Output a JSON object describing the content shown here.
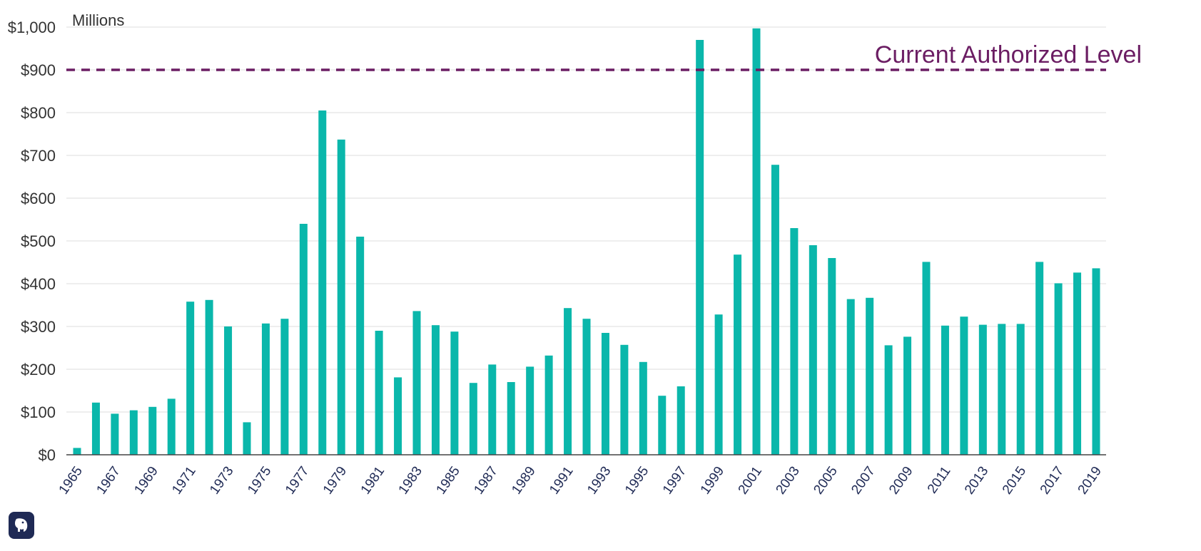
{
  "chart_data": {
    "type": "bar",
    "unit_label": "Millions",
    "categories": [
      "1965",
      "1966",
      "1967",
      "1968",
      "1969",
      "1970",
      "1971",
      "1972",
      "1973",
      "1974",
      "1975",
      "1976",
      "1977",
      "1978",
      "1979",
      "1980",
      "1981",
      "1982",
      "1983",
      "1984",
      "1985",
      "1986",
      "1987",
      "1988",
      "1989",
      "1990",
      "1991",
      "1992",
      "1993",
      "1994",
      "1995",
      "1996",
      "1997",
      "1998",
      "1999",
      "2000",
      "2001",
      "2002",
      "2003",
      "2004",
      "2005",
      "2006",
      "2007",
      "2008",
      "2009",
      "2010",
      "2011",
      "2012",
      "2013",
      "2014",
      "2015",
      "2016",
      "2017",
      "2018",
      "2019"
    ],
    "x_tick_labels": [
      "1965",
      "1967",
      "1969",
      "1971",
      "1973",
      "1975",
      "1977",
      "1979",
      "1981",
      "1983",
      "1985",
      "1987",
      "1989",
      "1991",
      "1993",
      "1995",
      "1997",
      "1999",
      "2001",
      "2003",
      "2005",
      "2007",
      "2009",
      "2011",
      "2013",
      "2015",
      "2017",
      "2019"
    ],
    "values": [
      16,
      122,
      96,
      104,
      112,
      131,
      358,
      362,
      300,
      76,
      307,
      318,
      540,
      805,
      737,
      510,
      290,
      181,
      336,
      303,
      288,
      168,
      211,
      170,
      206,
      232,
      343,
      318,
      285,
      257,
      217,
      138,
      160,
      970,
      328,
      468,
      997,
      678,
      530,
      490,
      460,
      364,
      367,
      256,
      276,
      451,
      302,
      323,
      304,
      306,
      306,
      451,
      401,
      426,
      436
    ],
    "ylim": [
      0,
      1000
    ],
    "y_ticks": [
      0,
      100,
      200,
      300,
      400,
      500,
      600,
      700,
      800,
      900,
      1000
    ],
    "y_tick_labels": [
      "$0",
      "$100",
      "$200",
      "$300",
      "$400",
      "$500",
      "$600",
      "$700",
      "$800",
      "$900",
      "$1,000"
    ],
    "grid": "horizontal",
    "reference_line": {
      "label": "Current Authorized Level",
      "value": 900
    },
    "title": "",
    "xlabel": "",
    "ylabel": ""
  },
  "colors": {
    "bar": "#0ab7ab",
    "reference": "#6b1d63",
    "grid": "#dddddd",
    "axis": "#444444",
    "x_tick_text": "#1f2a55",
    "y_tick_text": "#333333",
    "logo_bg": "#1f2a55"
  },
  "logo": {
    "icon": "elephant-logo-icon"
  }
}
